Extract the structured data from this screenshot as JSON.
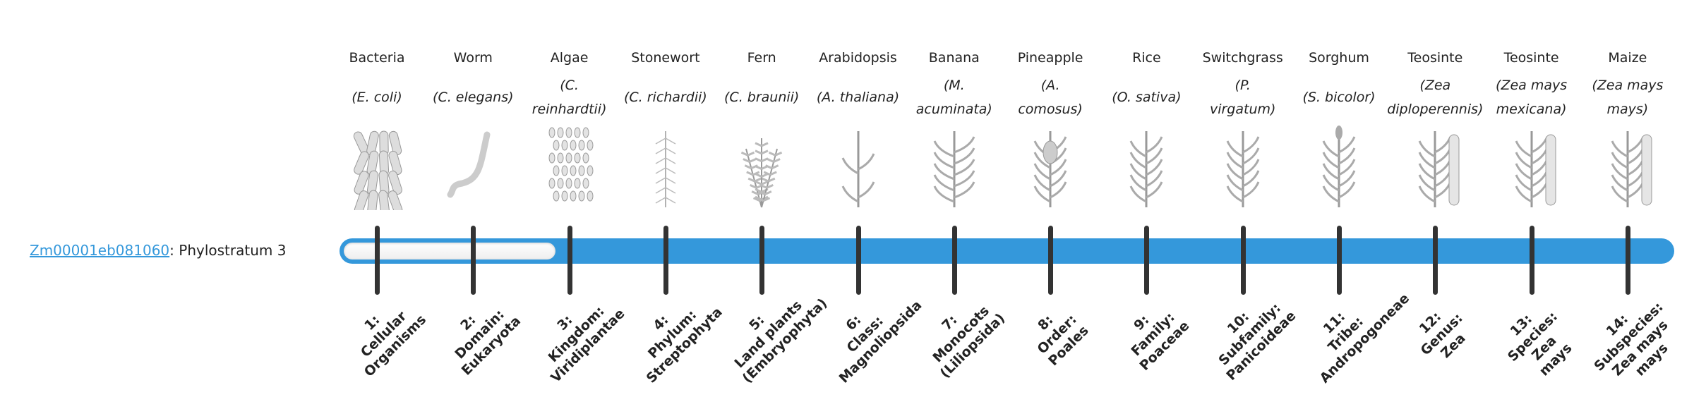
{
  "gene": {
    "id": "Zm00001eb081060",
    "suffix": ": Phylostratum 3",
    "phylostratum": 3
  },
  "colors": {
    "bar": "#3498db",
    "link": "#3498db",
    "tick": "#333333",
    "fill": "#f2f2f2"
  },
  "organisms": [
    {
      "common": "Bacteria",
      "sci": [
        "E. coli"
      ],
      "icon": "bacteria-icon"
    },
    {
      "common": "Worm",
      "sci": [
        "C. elegans"
      ],
      "icon": "worm-icon"
    },
    {
      "common": "Algae",
      "sci": [
        "C.",
        "reinhardtii"
      ],
      "icon": "algae-icon"
    },
    {
      "common": "Stonewort",
      "sci": [
        "C. richardii"
      ],
      "icon": "stonewort-icon"
    },
    {
      "common": "Fern",
      "sci": [
        "C. braunii"
      ],
      "icon": "fern-icon"
    },
    {
      "common": "Arabidopsis",
      "sci": [
        "A. thaliana"
      ],
      "icon": "arabidopsis-icon"
    },
    {
      "common": "Banana",
      "sci": [
        "M.",
        "acuminata"
      ],
      "icon": "banana-icon"
    },
    {
      "common": "Pineapple",
      "sci": [
        "A.",
        "comosus"
      ],
      "icon": "pineapple-icon"
    },
    {
      "common": "Rice",
      "sci": [
        "O. sativa"
      ],
      "icon": "rice-icon"
    },
    {
      "common": "Switchgrass",
      "sci": [
        "P.",
        "virgatum"
      ],
      "icon": "switchgrass-icon"
    },
    {
      "common": "Sorghum",
      "sci": [
        "S. bicolor"
      ],
      "icon": "sorghum-icon"
    },
    {
      "common": "Teosinte",
      "sci": [
        "Zea",
        "diploperennis"
      ],
      "icon": "teosinte-icon"
    },
    {
      "common": "Teosinte",
      "sci": [
        "Zea mays",
        "mexicana"
      ],
      "icon": "teosinte-icon"
    },
    {
      "common": "Maize",
      "sci": [
        "Zea mays",
        "mays"
      ],
      "icon": "maize-icon"
    }
  ],
  "strata": [
    [
      "1:",
      "Cellular",
      "Organisms"
    ],
    [
      "2:",
      "Domain:",
      "Eukaryota"
    ],
    [
      "3:",
      "Kingdom:",
      "Viridiplantae"
    ],
    [
      "4:",
      "Phylum:",
      "Streptophyta"
    ],
    [
      "5:",
      "Land plants",
      "(Embryophyta)"
    ],
    [
      "6:",
      "Class:",
      "Magnoliopsida"
    ],
    [
      "7:",
      "Monocots",
      "(Liliopsida)"
    ],
    [
      "8:",
      "Order:",
      "Poales"
    ],
    [
      "9:",
      "Family:",
      "Poaceae"
    ],
    [
      "10:",
      "Subfamily:",
      "Panicoideae"
    ],
    [
      "11:",
      "Tribe:",
      "Andropogoneae"
    ],
    [
      "12:",
      "Genus:",
      "Zea"
    ],
    [
      "13:",
      "Species:",
      "Zea",
      "mays"
    ],
    [
      "14:",
      "Subspecies:",
      "Zea mays",
      "mays"
    ]
  ]
}
